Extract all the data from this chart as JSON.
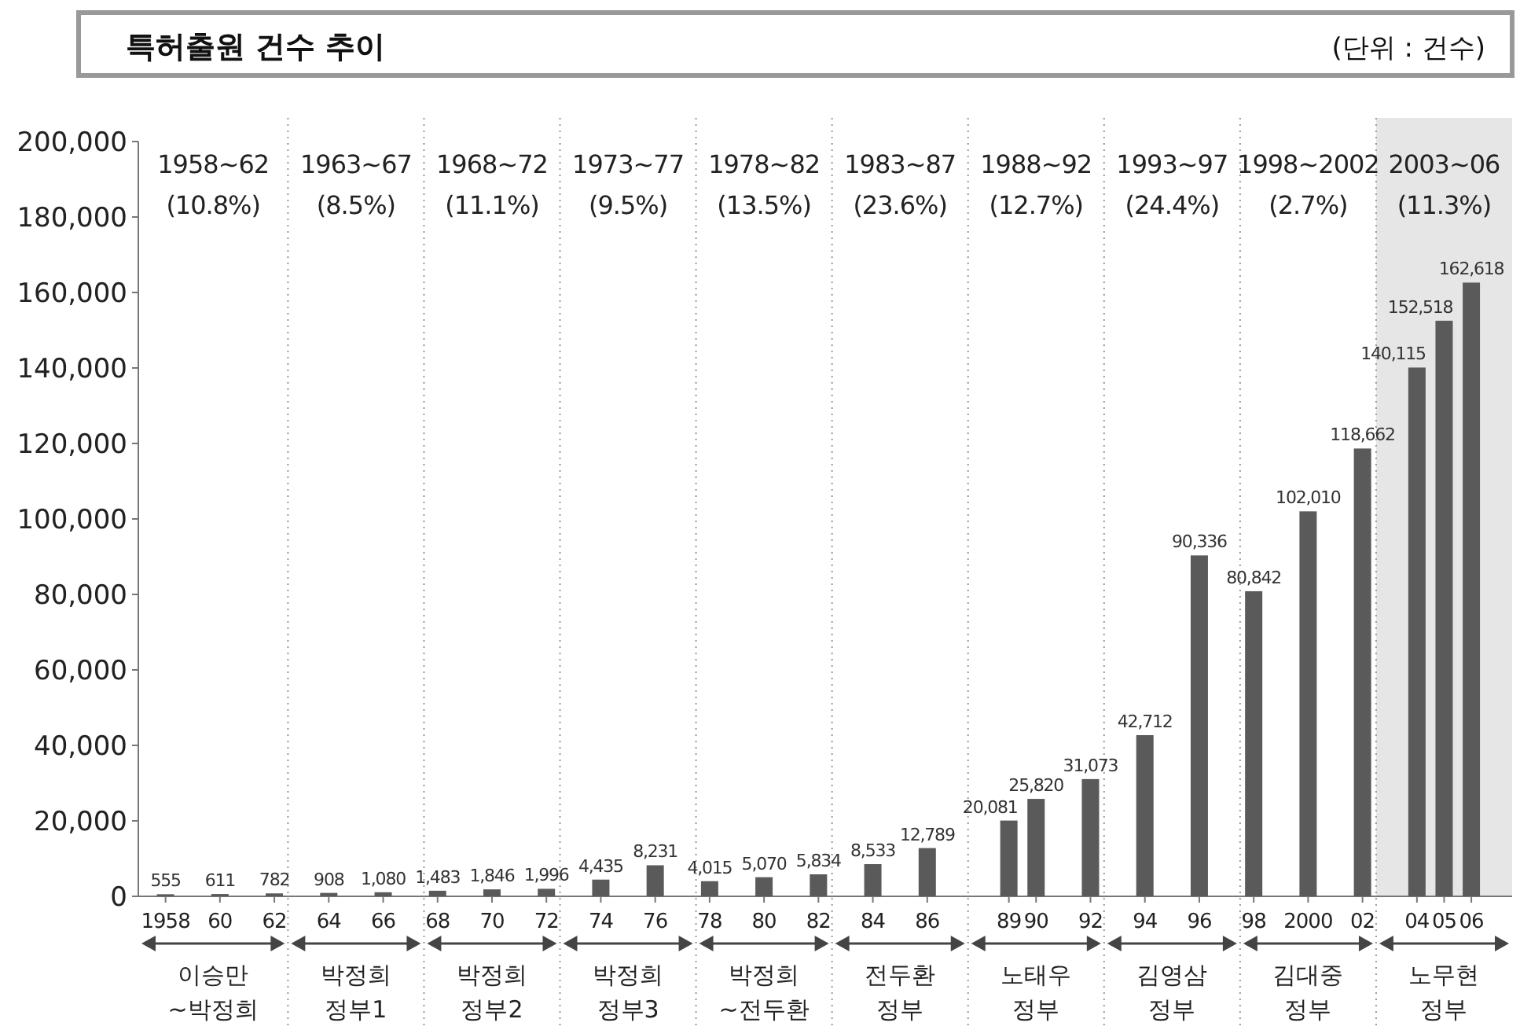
{
  "chart_data": {
    "type": "bar",
    "title": "특허출원 건수 추이",
    "subtitle": "(단위 : 건수)",
    "x": [
      1958,
      1960,
      1962,
      1964,
      1966,
      1968,
      1970,
      1972,
      1974,
      1976,
      1978,
      1980,
      1982,
      1984,
      1986,
      1989,
      1990,
      1992,
      1994,
      1996,
      1998,
      2000,
      2002,
      2004,
      2005,
      2006
    ],
    "values": [
      555,
      611,
      782,
      908,
      1080,
      1483,
      1846,
      1996,
      4435,
      8231,
      4015,
      5070,
      5834,
      8533,
      12789,
      20081,
      25820,
      31073,
      42712,
      90336,
      80842,
      102010,
      118662,
      140115,
      152518,
      162618
    ],
    "value_labels": [
      "555",
      "611",
      "782",
      "908",
      "1,080",
      "1,483",
      "1,846",
      "1,996",
      "4,435",
      "8,231",
      "4,015",
      "5,070",
      "5,834",
      "8,533",
      "12,789",
      "20,081",
      "25,820",
      "31,073",
      "42,712",
      "90,336",
      "80,842",
      "102,010",
      "118,662",
      "140,115",
      "152,518",
      "162,618"
    ],
    "color": "#5a5a5a",
    "xlim": [
      1957,
      2007.5
    ],
    "xticks": [
      {
        "value": 1958,
        "label": "1958"
      },
      {
        "value": 1960,
        "label": "60"
      },
      {
        "value": 1962,
        "label": "62"
      },
      {
        "value": 1964,
        "label": "64"
      },
      {
        "value": 1966,
        "label": "66"
      },
      {
        "value": 1968,
        "label": "68"
      },
      {
        "value": 1970,
        "label": "70"
      },
      {
        "value": 1972,
        "label": "72"
      },
      {
        "value": 1974,
        "label": "74"
      },
      {
        "value": 1976,
        "label": "76"
      },
      {
        "value": 1978,
        "label": "78"
      },
      {
        "value": 1980,
        "label": "80"
      },
      {
        "value": 1982,
        "label": "82"
      },
      {
        "value": 1984,
        "label": "84"
      },
      {
        "value": 1986,
        "label": "86"
      },
      {
        "value": 1989,
        "label": "89"
      },
      {
        "value": 1990,
        "label": "90"
      },
      {
        "value": 1992,
        "label": "92"
      },
      {
        "value": 1994,
        "label": "94"
      },
      {
        "value": 1996,
        "label": "96"
      },
      {
        "value": 1998,
        "label": "98"
      },
      {
        "value": 2000,
        "label": "2000"
      },
      {
        "value": 2002,
        "label": "02"
      },
      {
        "value": 2004,
        "label": "04"
      },
      {
        "value": 2005,
        "label": "05"
      },
      {
        "value": 2006,
        "label": "06"
      }
    ],
    "ylim": [
      0,
      200000
    ],
    "yticks": [
      {
        "value": 0,
        "label": "0"
      },
      {
        "value": 20000,
        "label": "20,000"
      },
      {
        "value": 40000,
        "label": "40,000"
      },
      {
        "value": 60000,
        "label": "60,000"
      },
      {
        "value": 80000,
        "label": "80,000"
      },
      {
        "value": 100000,
        "label": "100,000"
      },
      {
        "value": 120000,
        "label": "120,000"
      },
      {
        "value": 140000,
        "label": "140,000"
      },
      {
        "value": 160000,
        "label": "160,000"
      },
      {
        "value": 180000,
        "label": "180,000"
      },
      {
        "value": 200000,
        "label": "200,000"
      }
    ],
    "ref_lines": [
      {
        "axis": "x",
        "value": 1962.5,
        "line_style": "dotted",
        "color": "#999999"
      },
      {
        "axis": "x",
        "value": 1967.5,
        "line_style": "dotted",
        "color": "#999999"
      },
      {
        "axis": "x",
        "value": 1972.5,
        "line_style": "dotted",
        "color": "#999999"
      },
      {
        "axis": "x",
        "value": 1977.5,
        "line_style": "dotted",
        "color": "#999999"
      },
      {
        "axis": "x",
        "value": 1982.5,
        "line_style": "dotted",
        "color": "#999999"
      },
      {
        "axis": "x",
        "value": 1987.5,
        "line_style": "dotted",
        "color": "#999999"
      },
      {
        "axis": "x",
        "value": 1992.5,
        "line_style": "dotted",
        "color": "#999999"
      },
      {
        "axis": "x",
        "value": 1997.5,
        "line_style": "dotted",
        "color": "#999999"
      },
      {
        "axis": "x",
        "value": 2002.5,
        "line_style": "dotted",
        "color": "#999999"
      }
    ],
    "bands": [
      {
        "axis": "x",
        "from": 2002.5,
        "to": 2007.5,
        "label": "2003~06 (11.3%)",
        "color": "#e6e6e6"
      }
    ],
    "annotations": [
      "1958~62 (10.8%)",
      "1963~67 (8.5%)",
      "1968~72 (11.1%)",
      "1973~77 (9.5%)",
      "1978~82 (13.5%)",
      "1983~87 (23.6%)",
      "1988~92 (12.7%)",
      "1993~97 (24.4%)",
      "1998~2002 (2.7%)",
      "이승만 ~박정희",
      "박정희 정부1",
      "박정희 정부2",
      "박정희 정부3",
      "박정희 ~전두환",
      "전두환 정부",
      "노태우 정부",
      "김영삼 정부",
      "김대중 정부",
      "노무현 정부"
    ]
  }
}
